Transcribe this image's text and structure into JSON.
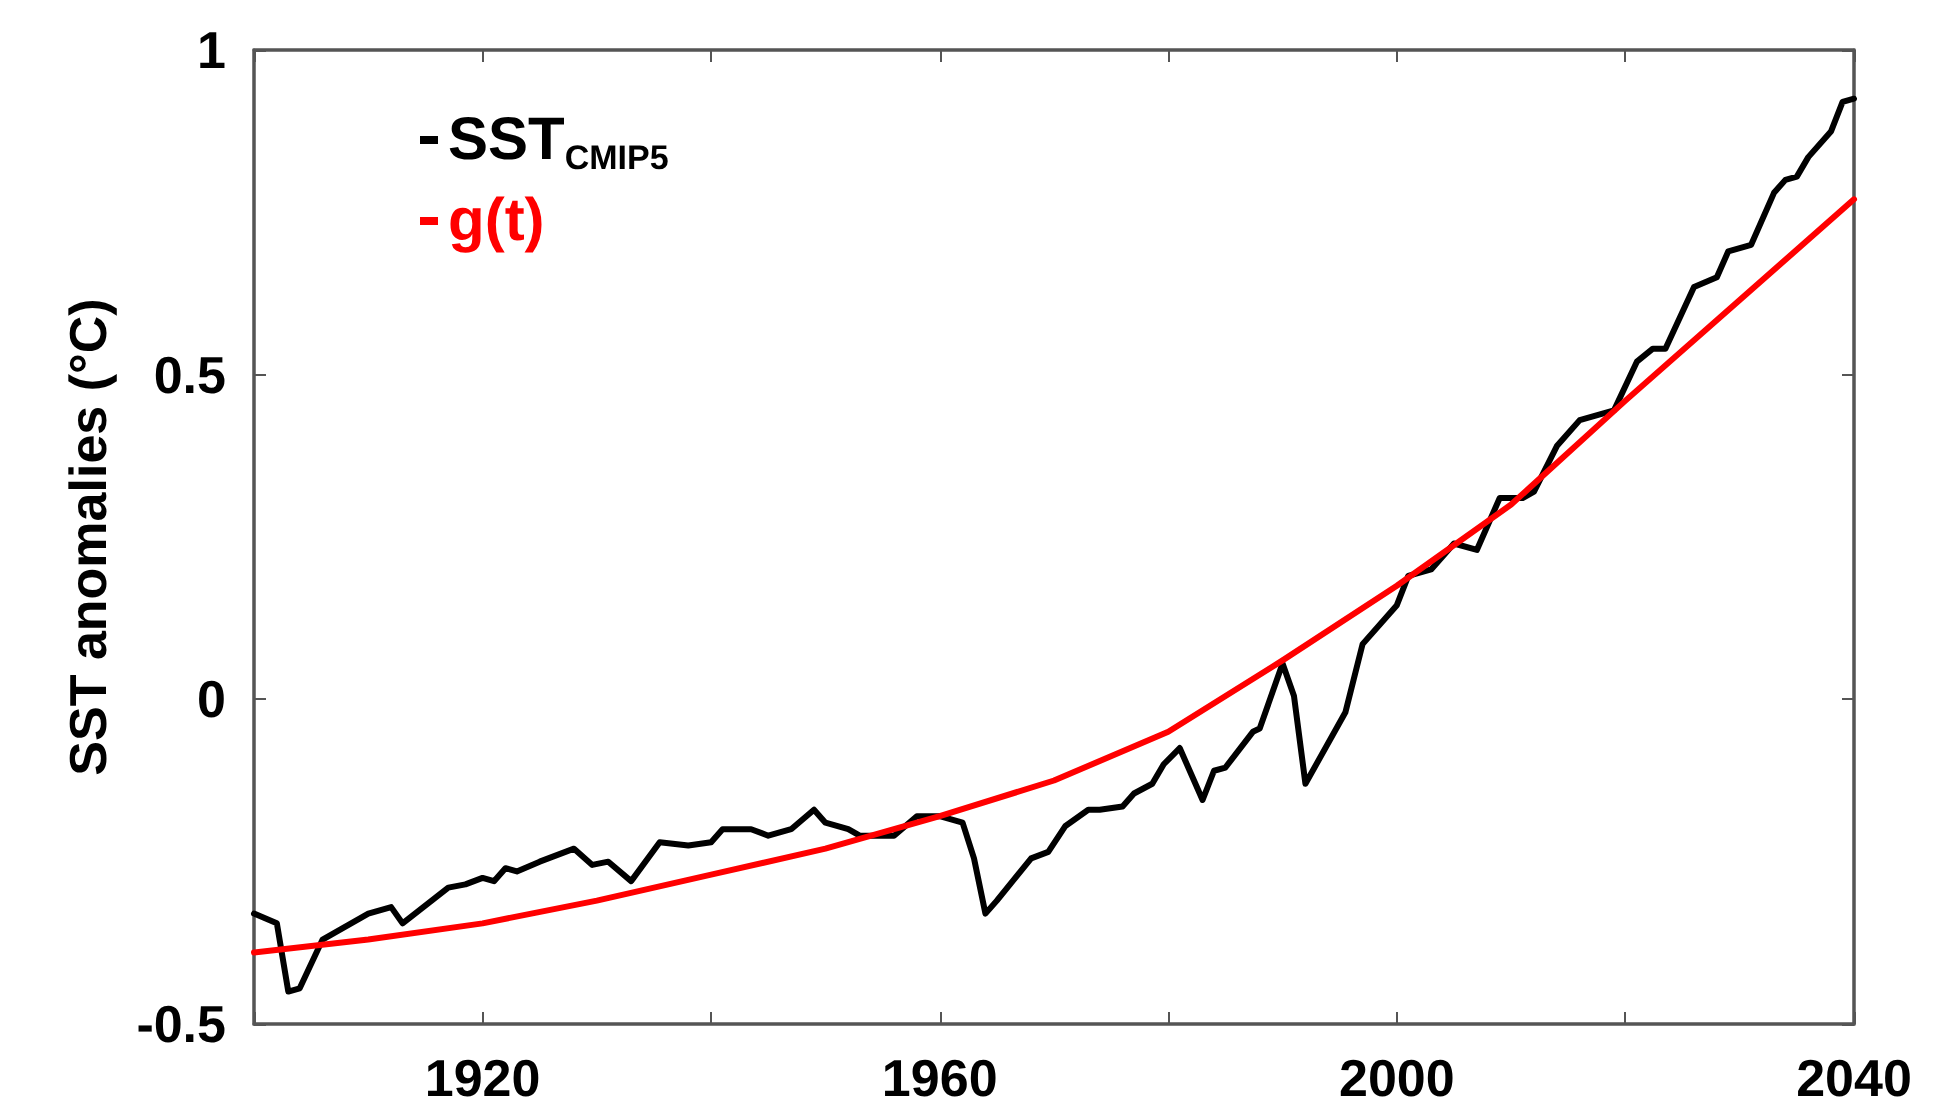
{
  "chart_data": {
    "type": "line",
    "ylabel": "SST anomalies (°C)",
    "xlim": [
      1900,
      2040
    ],
    "ylim": [
      -0.5,
      1
    ],
    "xticks": [
      {
        "value": 1900,
        "label": null
      },
      1920,
      {
        "value": 1940,
        "label": null
      },
      1960,
      {
        "value": 1980,
        "label": null
      },
      2000,
      {
        "value": 2020,
        "label": null
      },
      2040
    ],
    "yticks": [
      -0.5,
      0,
      0.5,
      1
    ],
    "grid": false,
    "legend": "top left",
    "marker": "none",
    "line_style": "solid",
    "series": [
      {
        "name": "SST$_{CMIP5}$",
        "color": "#000000",
        "x": [
          1900,
          1902,
          1903,
          1904,
          1906,
          1907,
          1910,
          1912,
          1913,
          1917,
          1918.5,
          1920,
          1921,
          1922,
          1923,
          1925,
          1928,
          1929.6,
          1931,
          1933,
          1935.5,
          1938,
          1940,
          1941,
          1943.5,
          1945,
          1947,
          1949,
          1950,
          1952,
          1953,
          1956,
          1958,
          1960,
          1962,
          1963,
          1964,
          1965,
          1968,
          1969.5,
          1971,
          1973,
          1974,
          1976,
          1977,
          1978.6,
          1979.6,
          1981,
          1983,
          1984,
          1985,
          1987.4,
          1988,
          1990,
          1991,
          1992,
          1995.5,
          1997,
          2000,
          2001,
          2003,
          2005,
          2007,
          2009,
          2011,
          2012,
          2014,
          2016,
          2018,
          2019,
          2021,
          2022.4,
          2023.5,
          2026,
          2028,
          2029,
          2031,
          2033,
          2034,
          2035,
          2036,
          2038,
          2039,
          2040
        ],
        "values": [
          -0.33,
          -0.345,
          -0.45,
          -0.445,
          -0.37,
          -0.36,
          -0.33,
          -0.32,
          -0.345,
          -0.29,
          -0.285,
          -0.275,
          -0.28,
          -0.26,
          -0.265,
          -0.25,
          -0.23,
          -0.255,
          -0.25,
          -0.28,
          -0.22,
          -0.225,
          -0.22,
          -0.2,
          -0.2,
          -0.21,
          -0.2,
          -0.17,
          -0.19,
          -0.2,
          -0.21,
          -0.21,
          -0.18,
          -0.18,
          -0.19,
          -0.245,
          -0.33,
          -0.31,
          -0.245,
          -0.235,
          -0.195,
          -0.17,
          -0.17,
          -0.165,
          -0.145,
          -0.13,
          -0.1,
          -0.075,
          -0.155,
          -0.11,
          -0.105,
          -0.05,
          -0.045,
          0.055,
          0.005,
          -0.13,
          -0.02,
          0.085,
          0.145,
          0.19,
          0.2,
          0.24,
          0.23,
          0.31,
          0.31,
          0.32,
          0.39,
          0.43,
          0.44,
          0.445,
          0.52,
          0.54,
          0.54,
          0.635,
          0.65,
          0.69,
          0.7,
          0.78,
          0.8,
          0.805,
          0.835,
          0.875,
          0.92,
          0.925
        ]
      },
      {
        "name": "g(t)",
        "color": "#ff0000",
        "x": [
          1900,
          1910,
          1920,
          1930,
          1940,
          1950,
          1960,
          1970,
          1980,
          1990,
          2000,
          2010,
          2020,
          2030,
          2040
        ],
        "values": [
          -0.39,
          -0.37,
          -0.345,
          -0.31,
          -0.27,
          -0.23,
          -0.18,
          -0.125,
          -0.05,
          0.06,
          0.175,
          0.3,
          0.46,
          0.615,
          0.77
        ]
      }
    ]
  }
}
